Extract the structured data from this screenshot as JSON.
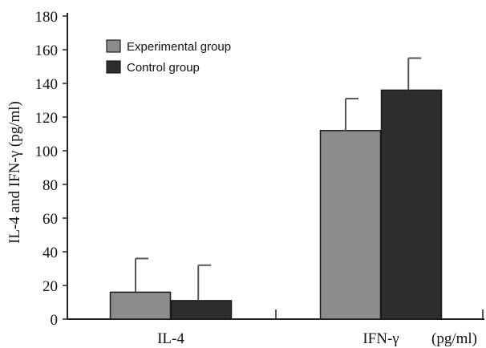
{
  "chart_data": {
    "type": "bar",
    "categories": [
      "IL-4",
      "IFN-γ"
    ],
    "series": [
      {
        "name": "Experimental group",
        "values": [
          16,
          112
        ],
        "errors": [
          20,
          19
        ]
      },
      {
        "name": "Control group",
        "values": [
          11,
          136
        ],
        "errors": [
          21,
          19
        ]
      }
    ],
    "ylabel": "IL-4 and IFN-γ (pg/ml)",
    "xunit": "(pg/ml)",
    "ylim": [
      0,
      180
    ],
    "yticks": [
      0,
      20,
      40,
      60,
      80,
      100,
      120,
      140,
      160,
      180
    ],
    "legend_position": "top-left",
    "grid": false,
    "colors": [
      "#8c8c8c",
      "#2e2e2e"
    ]
  }
}
